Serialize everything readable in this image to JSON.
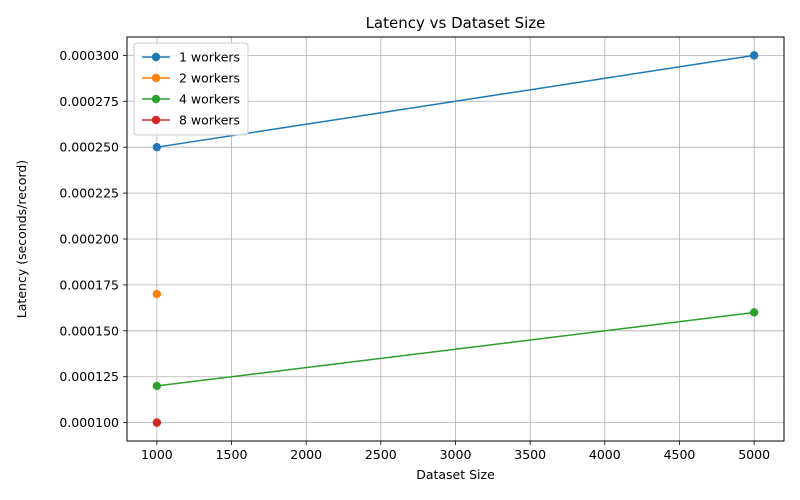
{
  "chart_data": {
    "type": "line",
    "title": "Latency vs Dataset Size",
    "xlabel": "Dataset Size",
    "ylabel": "Latency (seconds/record)",
    "xlim": [
      800,
      5200
    ],
    "ylim": [
      9e-05,
      0.00031
    ],
    "xticks": [
      1000,
      1500,
      2000,
      2500,
      3000,
      3500,
      4000,
      4500,
      5000
    ],
    "xtick_labels": [
      "1000",
      "1500",
      "2000",
      "2500",
      "3000",
      "3500",
      "4000",
      "4500",
      "5000"
    ],
    "yticks": [
      0.0001,
      0.000125,
      0.00015,
      0.000175,
      0.0002,
      0.000225,
      0.00025,
      0.000275,
      0.0003
    ],
    "ytick_labels": [
      "0.000100",
      "0.000125",
      "0.000150",
      "0.000175",
      "0.000200",
      "0.000225",
      "0.000250",
      "0.000275",
      "0.000300"
    ],
    "grid": true,
    "legend_position": "top-left",
    "series": [
      {
        "name": "1 workers",
        "color": "#1f77b4",
        "x": [
          1000,
          5000
        ],
        "y": [
          0.00025,
          0.0003
        ]
      },
      {
        "name": "2 workers",
        "color": "#ff7f0e",
        "x": [
          1000
        ],
        "y": [
          0.00017
        ]
      },
      {
        "name": "4 workers",
        "color": "#2ca02c",
        "x": [
          1000,
          5000
        ],
        "y": [
          0.00012,
          0.00016
        ]
      },
      {
        "name": "8 workers",
        "color": "#d62728",
        "x": [
          1000
        ],
        "y": [
          0.0001
        ]
      }
    ]
  }
}
